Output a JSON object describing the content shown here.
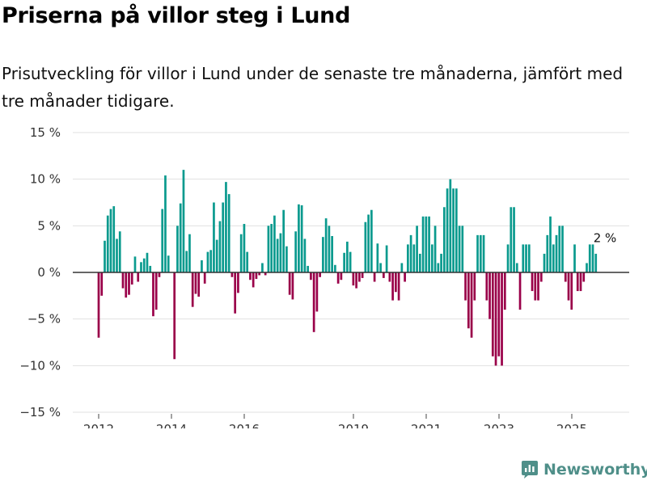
{
  "title": "Priserna på villor steg i Lund",
  "subtitle": "Prisutveckling för villor i Lund under de senaste tre månaderna, jämfört med tre månader tidigare.",
  "brand": "Newsworthy",
  "colors": {
    "positive": "#0a9a8e",
    "negative": "#9a0049",
    "brand": "#4f8f89"
  },
  "chart_data": {
    "type": "bar",
    "title": "Priserna på villor steg i Lund",
    "xlabel": "",
    "ylabel": "",
    "ylim": [
      -15,
      15
    ],
    "y_ticks": [
      15,
      10,
      5,
      0,
      -5,
      -10,
      -15
    ],
    "y_tick_labels": [
      "15 %",
      "10 %",
      "5 %",
      "0 %",
      "−5 %",
      "−10 %",
      "−15 %"
    ],
    "x_ticks": [
      2012,
      2014,
      2016,
      2019,
      2021,
      2023,
      2025
    ],
    "x_tick_labels": [
      "2012",
      "2014",
      "2016",
      "2019",
      "2021",
      "2023",
      "2025"
    ],
    "x_start": 2012.0,
    "x_step_years": 0.0833,
    "unit": "%",
    "values": [
      -7,
      -2.5,
      3.4,
      6.1,
      6.8,
      7.1,
      3.6,
      4.4,
      -1.7,
      -2.7,
      -2.4,
      -1.3,
      1.7,
      -1,
      1.1,
      1.5,
      2.1,
      0.7,
      -4.7,
      -4,
      -0.5,
      6.8,
      10.4,
      1.8,
      0,
      -9.3,
      5,
      7.4,
      11,
      2.3,
      4.1,
      -3.7,
      -2.3,
      -2.6,
      1.3,
      -1.2,
      2.2,
      2.4,
      7.5,
      3.5,
      5.5,
      7.5,
      9.7,
      8.4,
      -0.5,
      -4.4,
      -2.2,
      4.1,
      5.2,
      2.2,
      -0.8,
      -1.6,
      -0.7,
      -0.3,
      1,
      -0.3,
      5,
      5.2,
      6.1,
      3.6,
      4.2,
      6.7,
      2.8,
      -2.4,
      -2.9,
      4.4,
      7.3,
      7.2,
      3.6,
      0.7,
      -0.8,
      -6.4,
      -4.2,
      -0.5,
      3.8,
      5.8,
      5,
      3.9,
      0.8,
      -1.2,
      -0.8,
      2.1,
      3.3,
      2.2,
      -1.4,
      -1.7,
      -1,
      -0.6,
      5.4,
      6.2,
      6.7,
      -1,
      3.1,
      1,
      -0.6,
      2.9,
      -1,
      -3,
      -2.1,
      -3,
      1,
      -1,
      3,
      4,
      3,
      5,
      2,
      6,
      6,
      6,
      3,
      5,
      1,
      2,
      7,
      9,
      10,
      9,
      9,
      5,
      5,
      -3,
      -6,
      -7,
      -3,
      4,
      4,
      4,
      -3,
      -5,
      -9,
      -10,
      -9,
      -10,
      -4,
      3,
      7,
      7,
      1,
      -4,
      3,
      3,
      3,
      -2,
      -3,
      -3,
      -1,
      2,
      4,
      6,
      3,
      4,
      5,
      5,
      -1,
      -3,
      -4,
      3,
      -2,
      -2,
      -1,
      1,
      3,
      3,
      2
    ],
    "annotations": [
      {
        "text": "2 %",
        "x_index": 167,
        "value": 3
      }
    ]
  }
}
